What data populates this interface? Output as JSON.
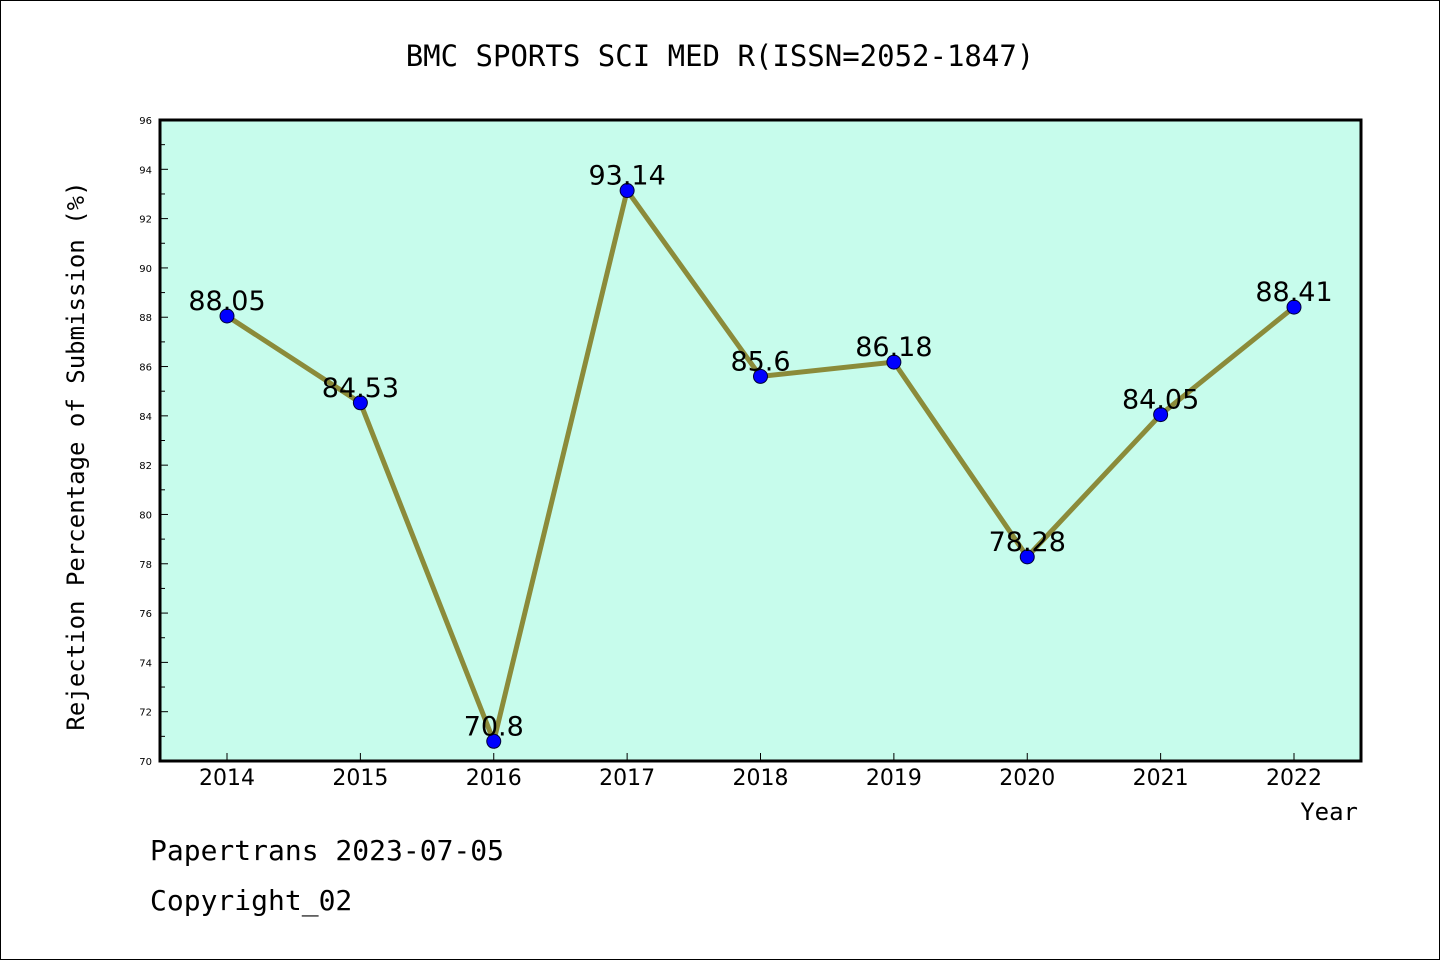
{
  "chart_data": {
    "type": "line",
    "title": "BMC SPORTS SCI MED R(ISSN=2052-1847)",
    "xlabel": "Year",
    "ylabel": "Rejection Percentage of Submission (%)",
    "categories": [
      "2014",
      "2015",
      "2016",
      "2017",
      "2018",
      "2019",
      "2020",
      "2021",
      "2022"
    ],
    "values": [
      88.05,
      84.53,
      70.8,
      93.14,
      85.6,
      86.18,
      78.28,
      84.05,
      88.41
    ],
    "data_labels": [
      "88.05",
      "84.53",
      "70.8",
      "93.14",
      "85.6",
      "86.18",
      "78.28",
      "84.05",
      "88.41"
    ],
    "ylim": [
      70,
      96
    ],
    "yticks": [
      "70",
      "72",
      "74",
      "76",
      "78",
      "80",
      "82",
      "84",
      "86",
      "88",
      "90",
      "92",
      "94",
      "96"
    ],
    "grid": false,
    "legend": "none",
    "colors": {
      "plot_background": "#c7fcec",
      "line": "#8b8b3a",
      "marker": "#0000ff"
    }
  },
  "footer": {
    "line1": "Papertrans 2023-07-05",
    "line2": "Copyright_02"
  }
}
